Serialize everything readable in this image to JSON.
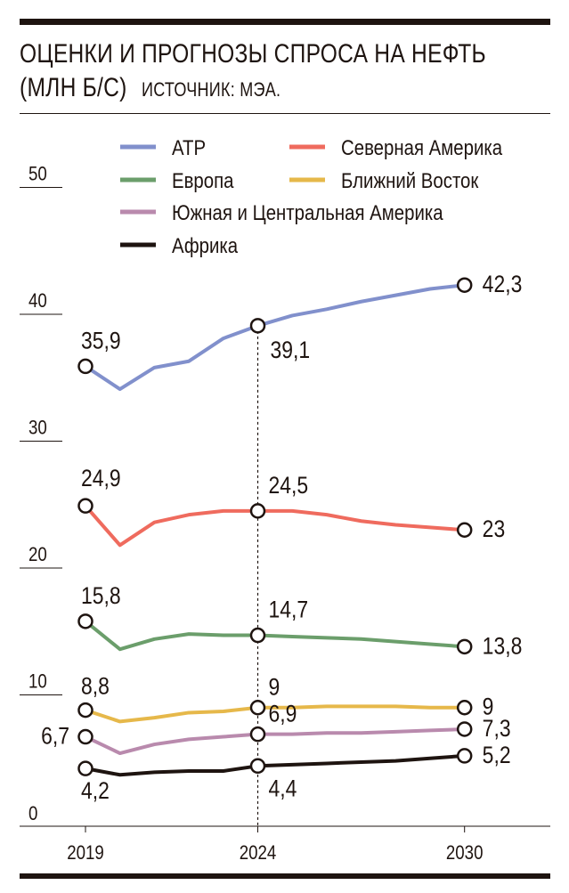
{
  "chart_data": {
    "type": "line",
    "title": "ОЦЕНКИ И ПРОГНОЗЫ СПРОСА НА НЕФТЬ",
    "title_line2": "(МЛН Б/С)",
    "source": "ИСТОЧНИК: МЭА.",
    "ylim": [
      0,
      50
    ],
    "y_ticks": [
      "0",
      "10",
      "20",
      "30",
      "40",
      "50"
    ],
    "x_tick_labels": [
      "2019",
      "2024",
      "2030"
    ],
    "x": [
      2019,
      2020,
      2021,
      2022,
      2023,
      2024,
      2025,
      2026,
      2027,
      2028,
      2029,
      2030
    ],
    "highlight_year": 2024,
    "legend_placement": "top",
    "grid": false,
    "series": [
      {
        "name": "АТР",
        "color": "#8190cc",
        "values": [
          35.9,
          34.1,
          35.8,
          36.3,
          38.1,
          39.1,
          39.9,
          40.4,
          41.0,
          41.5,
          42.0,
          42.3
        ],
        "labels": [
          "35,9",
          "39,1",
          "42,3"
        ]
      },
      {
        "name": "Северная Америка",
        "color": "#ef6b5e",
        "values": [
          24.9,
          21.8,
          23.6,
          24.2,
          24.5,
          24.5,
          24.5,
          24.2,
          23.7,
          23.4,
          23.2,
          23.0
        ],
        "labels": [
          "24,9",
          "24,5",
          "23"
        ]
      },
      {
        "name": "Европа",
        "color": "#6b9e6b",
        "values": [
          15.8,
          13.6,
          14.4,
          14.8,
          14.7,
          14.7,
          14.6,
          14.5,
          14.4,
          14.2,
          14.0,
          13.8
        ],
        "labels": [
          "15,8",
          "14,7",
          "13,8"
        ]
      },
      {
        "name": "Ближний Восток",
        "color": "#e6b84a",
        "values": [
          8.8,
          7.9,
          8.2,
          8.6,
          8.7,
          9.0,
          9.0,
          9.1,
          9.1,
          9.1,
          9.0,
          9.0
        ],
        "labels": [
          "8,8",
          "9",
          "9"
        ]
      },
      {
        "name": "Южная и Центральная Америка",
        "color": "#b98aad",
        "values": [
          6.7,
          5.4,
          6.1,
          6.5,
          6.7,
          6.9,
          6.9,
          7.0,
          7.0,
          7.1,
          7.2,
          7.3
        ],
        "labels": [
          "6,7",
          "6,9",
          "7,3"
        ]
      },
      {
        "name": "Африка",
        "color": "#1e1410",
        "values": [
          4.2,
          3.7,
          3.9,
          4.0,
          4.0,
          4.4,
          4.5,
          4.6,
          4.7,
          4.8,
          5.0,
          5.2
        ],
        "labels": [
          "4,2",
          "4,4",
          "5,2"
        ]
      }
    ]
  }
}
